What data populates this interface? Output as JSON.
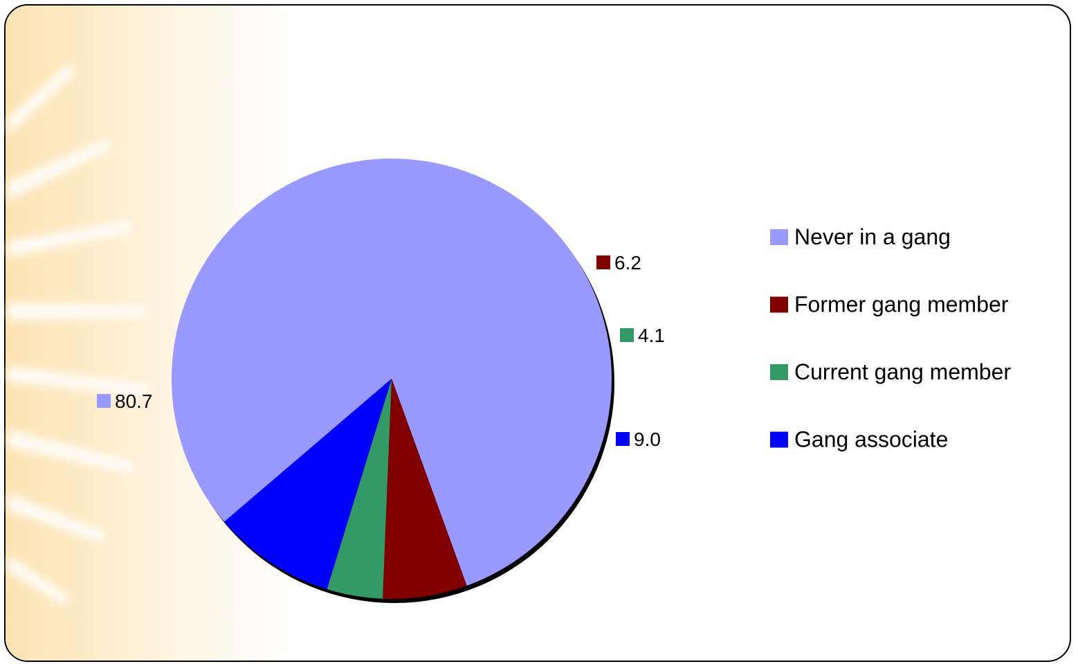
{
  "chart_data": {
    "type": "pie",
    "title": "",
    "legend_position": "right",
    "slices": [
      {
        "name": "Never in a gang",
        "value": 80.7,
        "label": "80.7",
        "color": "#9999ff"
      },
      {
        "name": "Former gang member",
        "value": 6.2,
        "label": "6.2",
        "color": "#800000"
      },
      {
        "name": "Current gang member",
        "value": 4.1,
        "label": "4.1",
        "color": "#339966"
      },
      {
        "name": "Gang associate",
        "value": 9.0,
        "label": "9.0",
        "color": "#0000ff"
      }
    ]
  }
}
